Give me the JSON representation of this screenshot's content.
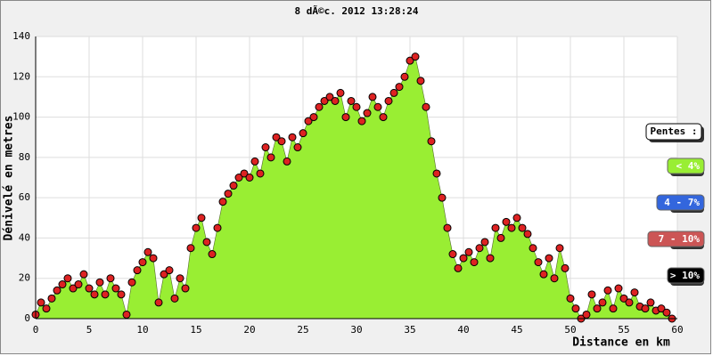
{
  "chart_data": {
    "type": "area",
    "title": "8 dÃ©c. 2012 13:28:24",
    "x_label": "Distance en km",
    "y_label": "Dénivelé en metres",
    "x": [
      0,
      0.5,
      1,
      1.5,
      2,
      2.5,
      3,
      3.5,
      4,
      4.5,
      5,
      5.5,
      6,
      6.5,
      7,
      7.5,
      8,
      8.5,
      9,
      9.5,
      10,
      10.5,
      11,
      11.5,
      12,
      12.5,
      13,
      13.5,
      14,
      14.5,
      15,
      15.5,
      16,
      16.5,
      17,
      17.5,
      18,
      18.5,
      19,
      19.5,
      20,
      20.5,
      21,
      21.5,
      22,
      22.5,
      23,
      23.5,
      24,
      24.5,
      25,
      25.5,
      26,
      26.5,
      27,
      27.5,
      28,
      28.5,
      29,
      29.5,
      30,
      30.5,
      31,
      31.5,
      32,
      32.5,
      33,
      33.5,
      34,
      34.5,
      35,
      35.5,
      36,
      36.5,
      37,
      37.5,
      38,
      38.5,
      39,
      39.5,
      40,
      40.5,
      41,
      41.5,
      42,
      42.5,
      43,
      43.5,
      44,
      44.5,
      45,
      45.5,
      46,
      46.5,
      47,
      47.5,
      48,
      48.5,
      49,
      49.5,
      50,
      50.5,
      51,
      51.5,
      52,
      52.5,
      53,
      53.5,
      54,
      54.5,
      55,
      55.5,
      56,
      56.5,
      57,
      57.5,
      58,
      58.5,
      59,
      59.5
    ],
    "values": [
      2,
      8,
      5,
      10,
      14,
      17,
      20,
      15,
      17,
      22,
      15,
      12,
      18,
      12,
      20,
      15,
      12,
      2,
      18,
      24,
      28,
      33,
      30,
      8,
      22,
      24,
      10,
      20,
      15,
      35,
      45,
      50,
      38,
      32,
      45,
      58,
      62,
      66,
      70,
      72,
      70,
      78,
      72,
      85,
      80,
      90,
      88,
      78,
      90,
      85,
      92,
      98,
      100,
      105,
      108,
      110,
      108,
      112,
      100,
      108,
      105,
      98,
      102,
      110,
      105,
      100,
      108,
      112,
      115,
      120,
      128,
      130,
      118,
      105,
      88,
      72,
      60,
      45,
      32,
      25,
      30,
      33,
      28,
      35,
      38,
      30,
      45,
      40,
      48,
      45,
      50,
      45,
      42,
      35,
      28,
      22,
      30,
      20,
      35,
      25,
      10,
      5,
      0,
      2,
      12,
      5,
      8,
      14,
      5,
      15,
      10,
      8,
      13,
      6,
      5,
      8,
      4,
      5,
      3,
      0
    ],
    "area_color": "#99ee33",
    "marker_color": "#dd2222",
    "xlim": [
      0,
      60
    ],
    "xticks": [
      0,
      5,
      10,
      15,
      20,
      25,
      30,
      35,
      40,
      45,
      50,
      55,
      60
    ],
    "ylim": [
      0,
      140
    ],
    "yticks": [
      0,
      20,
      40,
      60,
      80,
      100,
      120,
      140
    ],
    "grid": true,
    "legend": {
      "title": "Pentes :",
      "items": [
        {
          "label": "< 4%",
          "color": "#99ee33"
        },
        {
          "label": "4 - 7%",
          "color": "#3366dd"
        },
        {
          "label": "7 - 10%",
          "color": "#cc5555"
        },
        {
          "label": "> 10%",
          "color": "#000000"
        }
      ]
    }
  }
}
